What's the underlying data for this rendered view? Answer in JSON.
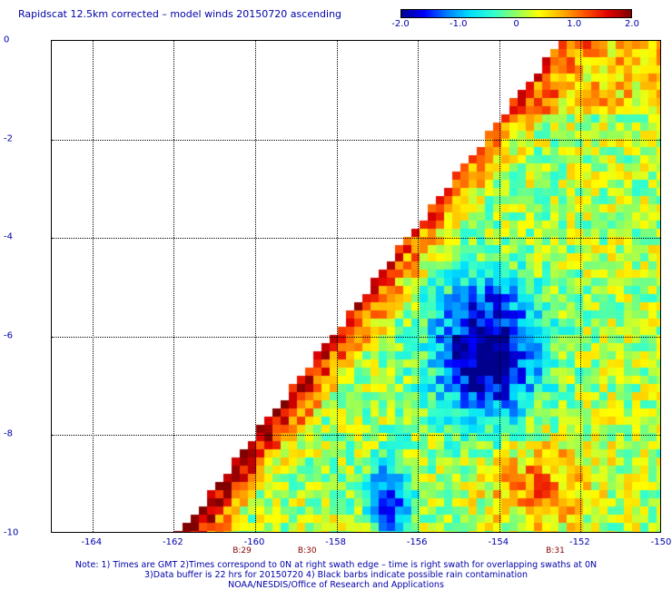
{
  "title": "Rapidscat 12.5km corrected – model winds 20150720 ascending",
  "colorbar": {
    "stops": [
      "#00008c",
      "#0000ff",
      "#0080ff",
      "#00e0ff",
      "#30ffd0",
      "#90ff60",
      "#ffff00",
      "#ffb000",
      "#ff5000",
      "#e00000",
      "#800000"
    ],
    "ticks": [
      {
        "label": "-2.0",
        "value": -2.0
      },
      {
        "label": "-1.0",
        "value": -1.0
      },
      {
        "label": "0",
        "value": 0
      },
      {
        "label": "1.0",
        "value": 1.0
      },
      {
        "label": "2.0",
        "value": 2.0
      }
    ],
    "range": [
      -2.0,
      2.0
    ]
  },
  "map": {
    "lon_range": [
      -165,
      -150
    ],
    "lat_range": [
      -10,
      0
    ],
    "x_ticks": [
      {
        "label": "-164",
        "value": -164
      },
      {
        "label": "-162",
        "value": -162
      },
      {
        "label": "-160",
        "value": -160
      },
      {
        "label": "-158",
        "value": -158
      },
      {
        "label": "-156",
        "value": -156
      },
      {
        "label": "-154",
        "value": -154
      },
      {
        "label": "-152",
        "value": -152
      },
      {
        "label": "-150",
        "value": -150
      }
    ],
    "y_ticks": [
      {
        "label": "0",
        "value": 0
      },
      {
        "label": "-2",
        "value": -2
      },
      {
        "label": "-4",
        "value": -4
      },
      {
        "label": "-6",
        "value": -6
      },
      {
        "label": "-8",
        "value": -8
      },
      {
        "label": "-10",
        "value": -10
      }
    ],
    "grid": true,
    "revolutions": [
      {
        "label": "B:29",
        "lon": -160.3
      },
      {
        "label": "B:30",
        "lon": -158.7
      },
      {
        "label": "B:31",
        "lon": -152.6
      }
    ]
  },
  "notes": {
    "line1": "Note: 1) Times are GMT 2)Times correspond to 0N at right swath edge – time is right swath for overlapping swaths at 0N",
    "line2": "3)Data buffer is 22 hrs for 20150720 4) Black barbs indicate possible rain contamination",
    "line3": "NOAA/NESDIS/Office of Research and Applications"
  }
}
